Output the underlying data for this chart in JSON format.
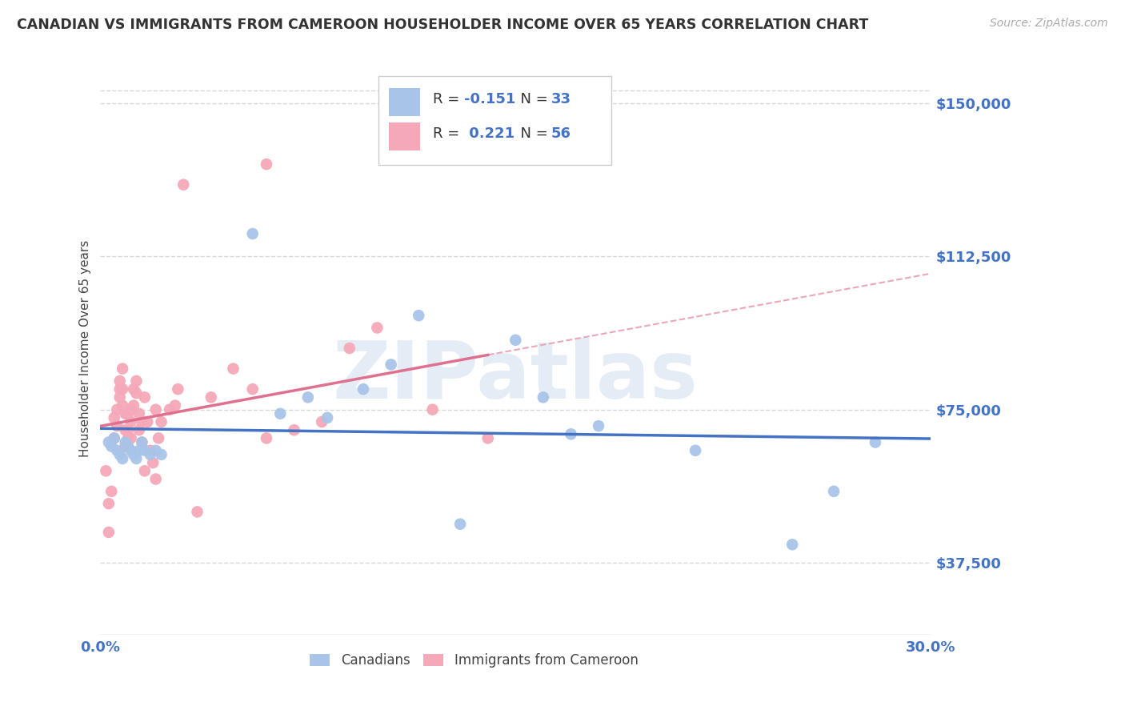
{
  "title": "CANADIAN VS IMMIGRANTS FROM CAMEROON HOUSEHOLDER INCOME OVER 65 YEARS CORRELATION CHART",
  "source": "Source: ZipAtlas.com",
  "ylabel": "Householder Income Over 65 years",
  "xlim": [
    0.0,
    0.3
  ],
  "ylim": [
    20000,
    160000
  ],
  "yticks": [
    37500,
    75000,
    112500,
    150000
  ],
  "ytick_labels": [
    "$37,500",
    "$75,000",
    "$112,500",
    "$150,000"
  ],
  "background_color": "#ffffff",
  "grid_color": "#d8d8d8",
  "canadians_color": "#a8c4e8",
  "cameroon_color": "#f5a8b8",
  "canadian_line_color": "#4472c4",
  "cameroon_line_color": "#e07090",
  "canadian_dash_color": "#b0b8c8",
  "cameroon_dash_color": "#e8a8b8",
  "canadians_x": [
    0.003,
    0.004,
    0.005,
    0.006,
    0.007,
    0.008,
    0.009,
    0.01,
    0.011,
    0.012,
    0.013,
    0.014,
    0.015,
    0.016,
    0.018,
    0.02,
    0.022,
    0.055,
    0.065,
    0.075,
    0.082,
    0.095,
    0.105,
    0.115,
    0.15,
    0.16,
    0.18,
    0.215,
    0.25,
    0.265,
    0.28,
    0.17,
    0.13
  ],
  "canadians_y": [
    67000,
    66000,
    68000,
    65000,
    64000,
    63000,
    67000,
    66000,
    65000,
    64000,
    63000,
    65000,
    67000,
    65000,
    64000,
    65000,
    64000,
    118000,
    74000,
    78000,
    73000,
    80000,
    86000,
    98000,
    92000,
    78000,
    71000,
    65000,
    42000,
    55000,
    67000,
    69000,
    47000
  ],
  "cameroon_x": [
    0.002,
    0.003,
    0.003,
    0.004,
    0.005,
    0.005,
    0.006,
    0.006,
    0.007,
    0.007,
    0.007,
    0.008,
    0.008,
    0.008,
    0.009,
    0.009,
    0.009,
    0.01,
    0.01,
    0.01,
    0.011,
    0.011,
    0.011,
    0.012,
    0.012,
    0.013,
    0.013,
    0.014,
    0.014,
    0.015,
    0.015,
    0.016,
    0.016,
    0.017,
    0.018,
    0.019,
    0.02,
    0.02,
    0.021,
    0.022,
    0.025,
    0.027,
    0.028,
    0.03,
    0.04,
    0.048,
    0.055,
    0.06,
    0.07,
    0.08,
    0.09,
    0.1,
    0.12,
    0.14,
    0.06,
    0.035
  ],
  "cameroon_y": [
    60000,
    52000,
    45000,
    55000,
    73000,
    68000,
    71000,
    75000,
    80000,
    82000,
    78000,
    85000,
    80000,
    76000,
    74000,
    70000,
    66000,
    74000,
    70000,
    68000,
    75000,
    72000,
    68000,
    80000,
    76000,
    79000,
    82000,
    74000,
    70000,
    67000,
    72000,
    78000,
    60000,
    72000,
    65000,
    62000,
    58000,
    75000,
    68000,
    72000,
    75000,
    76000,
    80000,
    130000,
    78000,
    85000,
    80000,
    68000,
    70000,
    72000,
    90000,
    95000,
    75000,
    68000,
    135000,
    50000
  ],
  "legend_text_canadian": [
    "R = ",
    "-0.151",
    "   N = ",
    "33"
  ],
  "legend_text_cameroon": [
    "R =  ",
    "0.221",
    "   N = ",
    "56"
  ],
  "legend_color": "#4472c4"
}
